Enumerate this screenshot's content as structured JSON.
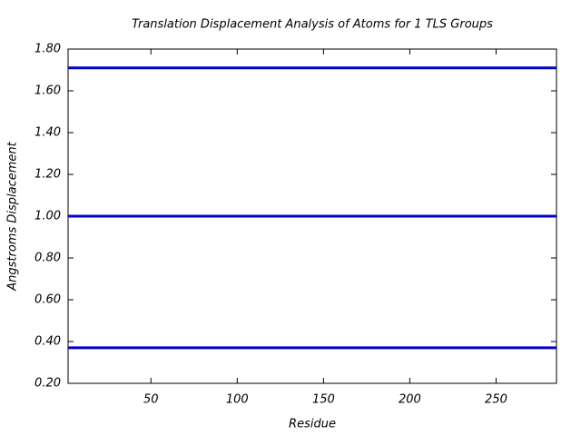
{
  "chart_data": {
    "type": "line",
    "title": "Translation Displacement Analysis of Atoms for 1 TLS Groups",
    "x_label": "Residue",
    "y_label": "Angstroms Displacement",
    "x": [
      2,
      285
    ],
    "series": [
      {
        "color": "#0000cc",
        "values": [
          1.71,
          1.71
        ]
      },
      {
        "color": "#0000cc",
        "values": [
          1.0,
          1.0
        ]
      },
      {
        "color": "#0000cc",
        "values": [
          0.37,
          0.37
        ]
      }
    ],
    "xlim": [
      2,
      285
    ],
    "xticks": [
      50,
      100,
      150,
      200,
      250
    ],
    "ylim": [
      0.2,
      1.8
    ],
    "yticks": [
      {
        "value": 0.2,
        "label": "0.20"
      },
      {
        "value": 0.4,
        "label": "0.40"
      },
      {
        "value": 0.6,
        "label": "0.60"
      },
      {
        "value": 0.8,
        "label": "0.80"
      },
      {
        "value": 1.0,
        "label": "1.00"
      },
      {
        "value": 1.2,
        "label": "1.20"
      },
      {
        "value": 1.4,
        "label": "1.40"
      },
      {
        "value": 1.6,
        "label": "1.60"
      },
      {
        "value": 1.8,
        "label": "1.80"
      }
    ]
  }
}
